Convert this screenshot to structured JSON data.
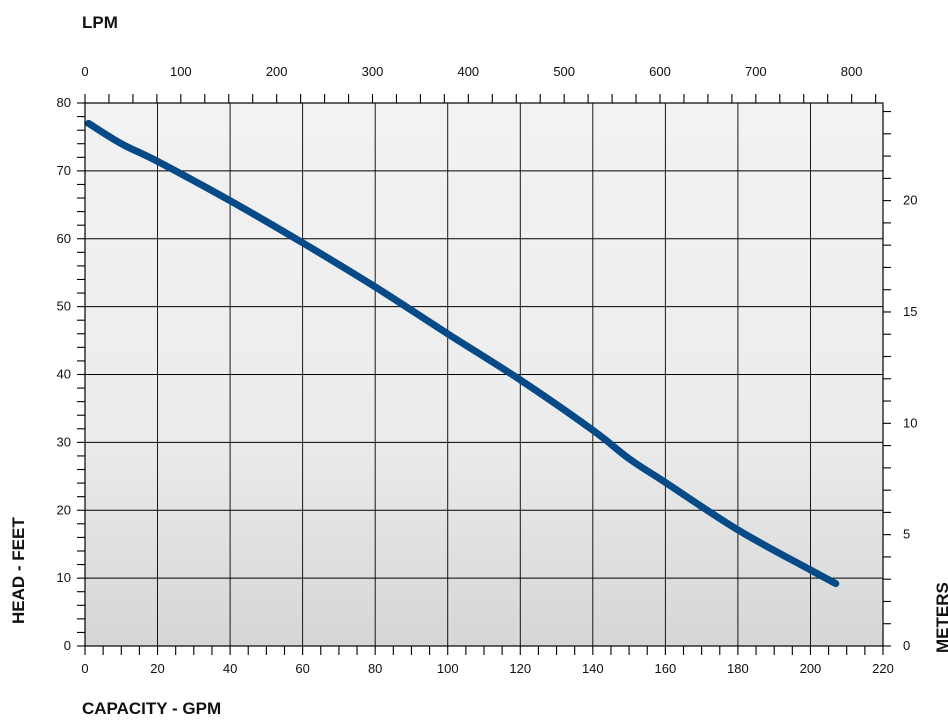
{
  "chart_data": {
    "type": "line",
    "title": "",
    "xlabel": "CAPACITY - GPM",
    "ylabel": "HEAD - FEET",
    "x2label": "LPM",
    "y2label": "METERS",
    "xlim": [
      0,
      220
    ],
    "ylim": [
      0,
      80
    ],
    "x_ticks": [
      0,
      20,
      40,
      60,
      80,
      100,
      120,
      140,
      160,
      180,
      200,
      220
    ],
    "y_ticks": [
      0,
      10,
      20,
      30,
      40,
      50,
      60,
      70,
      80
    ],
    "x2_ticks": [
      0,
      100,
      200,
      300,
      400,
      500,
      600,
      700,
      800
    ],
    "y2_ticks": [
      0,
      5,
      10,
      15,
      20
    ],
    "x_tick_labels": [
      "0",
      "20",
      "40",
      "60",
      "80",
      "100",
      "120",
      "140",
      "160",
      "180",
      "200",
      "220"
    ],
    "y_tick_labels": [
      "0",
      "10",
      "20",
      "30",
      "40",
      "50",
      "60",
      "70",
      "80"
    ],
    "x2_tick_labels": [
      "0",
      "100",
      "200",
      "300",
      "400",
      "500",
      "600",
      "700",
      "800"
    ],
    "y2_tick_labels": [
      "0",
      "5",
      "10",
      "15",
      "20"
    ],
    "grid": true,
    "series": [
      {
        "color": "#064a87",
        "x": [
          1,
          10,
          20,
          40,
          60,
          80,
          100,
          120,
          140,
          150,
          160,
          180,
          200,
          207
        ],
        "y": [
          77,
          74,
          71.4,
          65.6,
          59.4,
          52.9,
          46,
          39.2,
          31.8,
          27.6,
          24.1,
          17.1,
          11.2,
          9.2
        ]
      }
    ],
    "colors": {
      "line": "#064a87",
      "grid": "#000000",
      "plot_bg_top": "#f1f1f1",
      "plot_bg_bottom": "#d9d9d9"
    }
  }
}
